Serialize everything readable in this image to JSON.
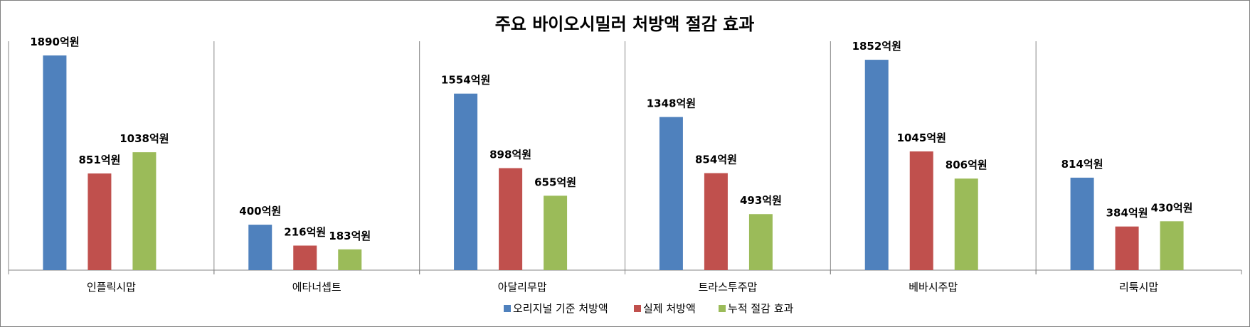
{
  "chart_data": {
    "type": "bar",
    "title": "주요 바이오시밀러 처방액 절감 효과",
    "categories": [
      "인플릭시맙",
      "에타너셉트",
      "아달리무맙",
      "트라스투주맙",
      "베바시주맙",
      "리툭시맙"
    ],
    "series": [
      {
        "name": "오리지널 기준 처방액",
        "values": [
          1890,
          400,
          1554,
          1348,
          1852,
          814
        ],
        "color": "#4F81BD"
      },
      {
        "name": "실제 처방액",
        "values": [
          851,
          216,
          898,
          854,
          1045,
          384
        ],
        "color": "#C0504D"
      },
      {
        "name": "누적 절감 효과",
        "values": [
          1038,
          183,
          655,
          493,
          806,
          430
        ],
        "color": "#9BBB59"
      }
    ],
    "value_suffix": "억원",
    "data_labels": [
      [
        "1890억원",
        "400억원",
        "1554억원",
        "1348억원",
        "1852억원",
        "814억원"
      ],
      [
        "851억원",
        "216억원",
        "898억원",
        "854억원",
        "1045억원",
        "384억원"
      ],
      [
        "1038억원",
        "183억원",
        "655억원",
        "493억원",
        "806억원",
        "430억원"
      ]
    ],
    "ylim": [
      0,
      2000
    ],
    "grid": false,
    "legend_position": "bottom",
    "category_separators": true
  }
}
